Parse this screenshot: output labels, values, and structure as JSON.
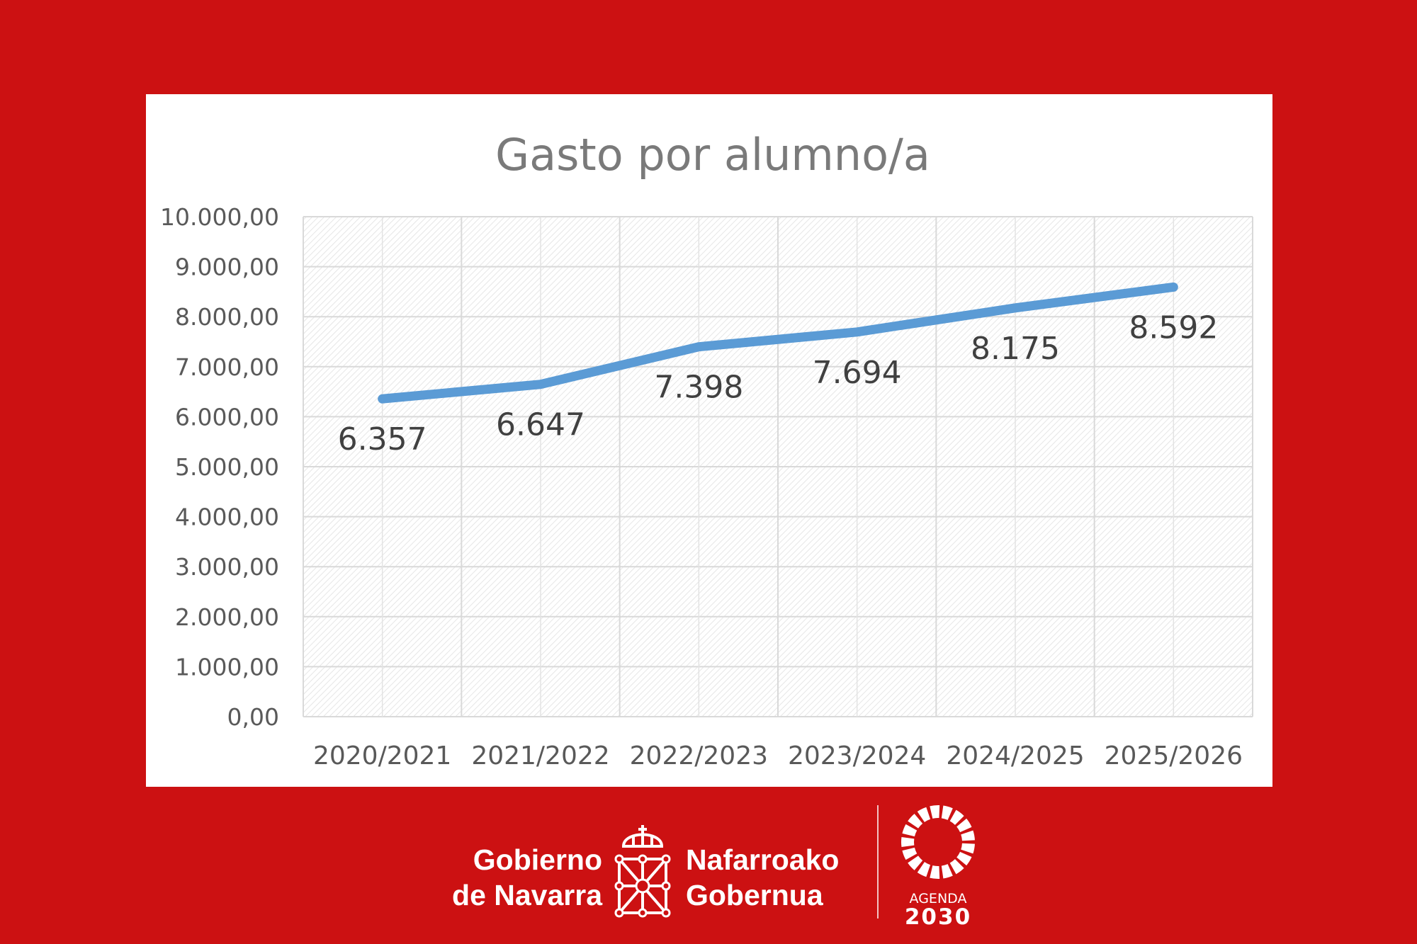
{
  "chart_data": {
    "type": "line",
    "title": "Gasto por alumno/a",
    "categories": [
      "2020/2021",
      "2021/2022",
      "2022/2023",
      "2023/2024",
      "2024/2025",
      "2025/2026"
    ],
    "series": [
      {
        "values": [
          6357,
          6647,
          7398,
          7694,
          8175,
          8592
        ],
        "color": "#5B9BD5"
      }
    ],
    "data_labels": [
      "6.357",
      "6.647",
      "7.398",
      "7.694",
      "8.175",
      "8.592"
    ],
    "ylim": [
      0,
      10000
    ],
    "yticks": [
      0,
      1000,
      2000,
      3000,
      4000,
      5000,
      6000,
      7000,
      8000,
      9000,
      10000
    ],
    "ytick_labels": [
      "0,00",
      "1.000,00",
      "2.000,00",
      "3.000,00",
      "4.000,00",
      "5.000,00",
      "6.000,00",
      "7.000,00",
      "8.000,00",
      "9.000,00",
      "10.000,00"
    ],
    "xlabel": "",
    "ylabel": "",
    "grid": true,
    "legend": "none"
  },
  "footer": {
    "org_es_line1": "Gobierno",
    "org_es_line2": "de Navarra",
    "org_eu_line1": "Nafarroako",
    "org_eu_line2": "Gobernua",
    "coat_icon": "navarra-coat-of-arms-icon",
    "agenda_label": "AGENDA",
    "agenda_year": "2030"
  },
  "colors": {
    "background": "#CC1112",
    "panel": "#FFFFFF",
    "line": "#5B9BD5",
    "text_white": "#FFFFFF"
  }
}
